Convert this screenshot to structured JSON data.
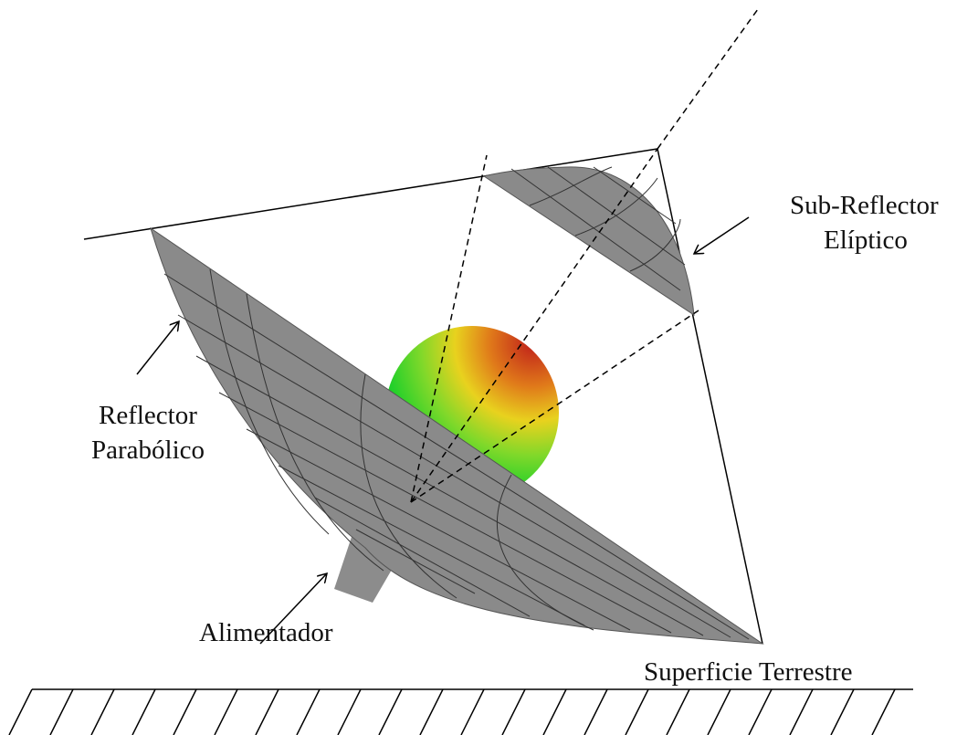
{
  "labels": {
    "sub_reflector": [
      "Sub-Reflector",
      "Elíptico"
    ],
    "parabolic_reflector": [
      "Reflector",
      "Parabólico"
    ],
    "feed": "Alimentador",
    "ground": "Superficie Terrestre"
  }
}
